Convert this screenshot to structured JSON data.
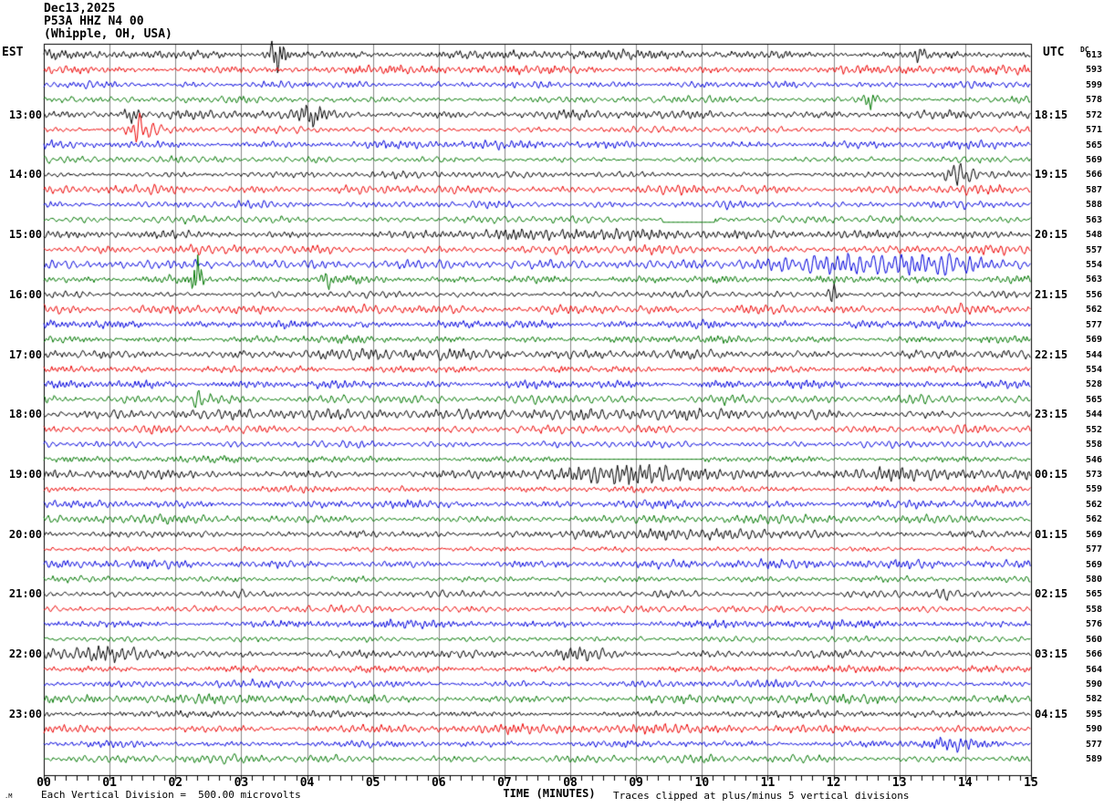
{
  "header": {
    "date": "Dec13,2025",
    "station": "P53A HHZ N4 00",
    "location": "(Whipple, OH, USA)"
  },
  "timezones": {
    "left": "EST",
    "right": "UTC"
  },
  "right_column": {
    "header": "DC"
  },
  "footer": {
    "scale_note": "Each Vertical Division =  500.00 microvolts",
    "axis_label": "TIME (MINUTES)",
    "clip_note": "Traces clipped at plus/minus 5 vertical divisions",
    "corner_mark": ".M"
  },
  "chart_data": {
    "type": "line",
    "subtype": "helicorder-seismogram",
    "title": "P53A HHZ N4 00 (Whipple, OH, USA) Dec13,2025",
    "xlabel": "TIME (MINUTES)",
    "x_min": 0,
    "x_max": 15,
    "x_tick_labels": [
      "00",
      "01",
      "02",
      "03",
      "04",
      "05",
      "06",
      "07",
      "08",
      "09",
      "10",
      "11",
      "12",
      "13",
      "14",
      "15"
    ],
    "minor_ticks_per_minute": 6,
    "num_rows": 48,
    "minutes_per_row": 15,
    "color_cycle": [
      "#000000",
      "#ee0000",
      "#0000dd",
      "#007700"
    ],
    "grid_color": "#888888",
    "vertical_division_microvolts": 500.0,
    "clip_divisions": 5,
    "est_labels": [
      {
        "row": 5,
        "label": "13:00"
      },
      {
        "row": 9,
        "label": "14:00"
      },
      {
        "row": 13,
        "label": "15:00"
      },
      {
        "row": 17,
        "label": "16:00"
      },
      {
        "row": 21,
        "label": "17:00"
      },
      {
        "row": 25,
        "label": "18:00"
      },
      {
        "row": 29,
        "label": "19:00"
      },
      {
        "row": 33,
        "label": "20:00"
      },
      {
        "row": 37,
        "label": "21:00"
      },
      {
        "row": 41,
        "label": "22:00"
      },
      {
        "row": 45,
        "label": "23:00"
      }
    ],
    "utc_labels": [
      {
        "row": 5,
        "label": "18:15"
      },
      {
        "row": 9,
        "label": "19:15"
      },
      {
        "row": 13,
        "label": "20:15"
      },
      {
        "row": 17,
        "label": "21:15"
      },
      {
        "row": 21,
        "label": "22:15"
      },
      {
        "row": 25,
        "label": "23:15"
      },
      {
        "row": 29,
        "label": "00:15"
      },
      {
        "row": 33,
        "label": "01:15"
      },
      {
        "row": 37,
        "label": "02:15"
      },
      {
        "row": 41,
        "label": "03:15"
      },
      {
        "row": 45,
        "label": "04:15"
      }
    ],
    "dc_offsets": [
      613,
      593,
      599,
      578,
      572,
      571,
      565,
      569,
      566,
      587,
      588,
      563,
      548,
      557,
      554,
      563,
      556,
      562,
      577,
      569,
      544,
      554,
      528,
      565,
      544,
      552,
      558,
      546,
      573,
      559,
      562,
      562,
      569,
      577,
      569,
      580,
      565,
      558,
      576,
      560,
      566,
      564,
      590,
      582,
      595,
      590,
      577,
      589
    ],
    "events": [
      {
        "row": 1,
        "min": 3.55,
        "sigma": 0.1,
        "amp": 20
      },
      {
        "row": 1,
        "min": 13.3,
        "sigma": 0.08,
        "amp": 7
      },
      {
        "row": 4,
        "min": 12.55,
        "sigma": 0.08,
        "amp": 9
      },
      {
        "row": 5,
        "min": 1.35,
        "sigma": 0.1,
        "amp": 8
      },
      {
        "row": 5,
        "min": 4.05,
        "sigma": 0.15,
        "amp": 9
      },
      {
        "row": 6,
        "min": 1.5,
        "sigma": 0.18,
        "amp": 11
      },
      {
        "row": 6,
        "min": 1.45,
        "sigma": 0.05,
        "amp": 8
      },
      {
        "row": 9,
        "min": 13.9,
        "sigma": 0.14,
        "amp": 13
      },
      {
        "row": 13,
        "min": 8.8,
        "sigma": 1.4,
        "amp": 4
      },
      {
        "row": 15,
        "min": 12.6,
        "sigma": 1.0,
        "amp": 10
      },
      {
        "row": 15,
        "min": 13.9,
        "sigma": 0.25,
        "amp": 5
      },
      {
        "row": 16,
        "min": 2.33,
        "sigma": 0.05,
        "amp": 26
      },
      {
        "row": 16,
        "min": 4.3,
        "sigma": 0.07,
        "amp": 10
      },
      {
        "row": 17,
        "min": 12.0,
        "sigma": 0.07,
        "amp": 12
      },
      {
        "row": 21,
        "min": 6.0,
        "sigma": 1.2,
        "amp": 3
      },
      {
        "row": 24,
        "min": 2.35,
        "sigma": 0.05,
        "amp": 11
      },
      {
        "row": 25,
        "min": 7.0,
        "sigma": 3.0,
        "amp": 3
      },
      {
        "row": 29,
        "min": 9.1,
        "sigma": 0.8,
        "amp": 9
      },
      {
        "row": 29,
        "min": 13.0,
        "sigma": 1.0,
        "amp": 4
      },
      {
        "row": 33,
        "min": 9.8,
        "sigma": 0.9,
        "amp": 5
      },
      {
        "row": 37,
        "min": 13.8,
        "sigma": 0.2,
        "amp": 7
      },
      {
        "row": 41,
        "min": 1.0,
        "sigma": 0.7,
        "amp": 6
      },
      {
        "row": 41,
        "min": 8.2,
        "sigma": 0.4,
        "amp": 6
      },
      {
        "row": 47,
        "min": 13.8,
        "sigma": 0.3,
        "amp": 6
      }
    ],
    "dropouts": [
      {
        "row": 28,
        "start": 8.05,
        "end": 10.0,
        "offset": 0
      },
      {
        "row": 12,
        "start": 9.4,
        "end": 10.2,
        "offset": -3
      }
    ]
  }
}
